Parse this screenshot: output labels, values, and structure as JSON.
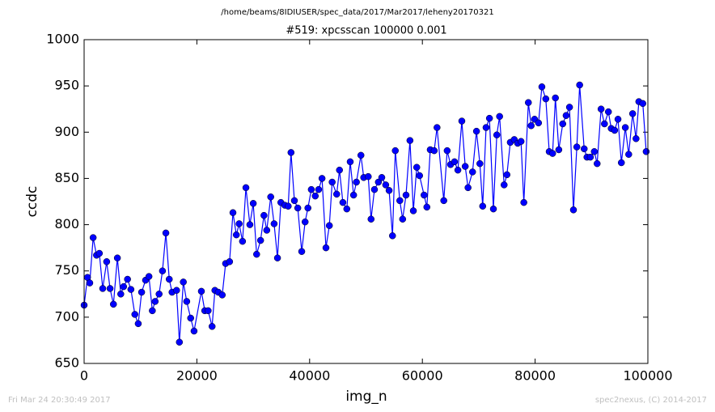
{
  "chart_data": {
    "type": "line",
    "suptitle": "/home/beams/8IDIUSER/spec_data/2017/Mar2017/leheny20170321",
    "title": "#519: xpcsscan 100000 0.001",
    "xlabel": "img_n",
    "ylabel": "ccdc",
    "footer_left": "Fri Mar 24 20:30:49 2017",
    "footer_right": "spec2nexus, (C) 2014-2017",
    "xlim": [
      0,
      100000
    ],
    "xticks": [
      0,
      20000,
      40000,
      60000,
      80000,
      100000
    ],
    "ylim": [
      650,
      1000
    ],
    "yticks": [
      650,
      700,
      750,
      800,
      850,
      900,
      950,
      1000
    ],
    "color": "#0000ff",
    "x": [
      0,
      600,
      1000,
      1600,
      2200,
      2700,
      3300,
      4000,
      4600,
      5200,
      5900,
      6500,
      7000,
      7700,
      8300,
      9000,
      9600,
      10200,
      10900,
      11500,
      12100,
      12600,
      13300,
      13900,
      14500,
      15100,
      15600,
      16400,
      16900,
      17600,
      18200,
      18900,
      19500,
      20800,
      21400,
      22000,
      22700,
      23200,
      23800,
      24500,
      25100,
      25800,
      26400,
      27000,
      27500,
      28100,
      28700,
      29400,
      30000,
      30600,
      31300,
      31900,
      32400,
      33100,
      33700,
      34300,
      34900,
      35600,
      36200,
      36700,
      37300,
      37900,
      38600,
      39200,
      39700,
      40300,
      41000,
      41600,
      42200,
      42900,
      43500,
      44000,
      44800,
      45300,
      45900,
      46600,
      47200,
      47800,
      48300,
      49100,
      49600,
      50400,
      50900,
      51500,
      52200,
      52800,
      53500,
      54100,
      54700,
      55200,
      56000,
      56500,
      57100,
      57800,
      58400,
      59000,
      59500,
      60300,
      60800,
      61400,
      62100,
      62600,
      63800,
      64400,
      65000,
      65700,
      66300,
      67000,
      67600,
      68100,
      68900,
      69600,
      70200,
      70700,
      71300,
      71900,
      72600,
      73200,
      73700,
      74500,
      75000,
      75600,
      76300,
      76900,
      77500,
      78000,
      78800,
      79300,
      79900,
      80600,
      81200,
      81900,
      82500,
      83100,
      83600,
      84200,
      84900,
      85500,
      86100,
      86800,
      87400,
      87900,
      88700,
      89200,
      89800,
      90500,
      91000,
      91700,
      92300,
      93000,
      93500,
      94100,
      94700,
      95300,
      96000,
      96600,
      97300,
      97900,
      98400,
      99100,
      99700
    ],
    "values": [
      713,
      743,
      737,
      786,
      767,
      769,
      731,
      760,
      731,
      714,
      764,
      725,
      733,
      741,
      730,
      703,
      693,
      727,
      740,
      744,
      707,
      717,
      725,
      750,
      791,
      741,
      727,
      729,
      673,
      738,
      717,
      699,
      685,
      728,
      707,
      707,
      690,
      729,
      727,
      724,
      758,
      760,
      813,
      789,
      801,
      782,
      840,
      800,
      823,
      768,
      783,
      810,
      794,
      830,
      801,
      764,
      824,
      821,
      820,
      878,
      826,
      818,
      771,
      803,
      818,
      838,
      831,
      838,
      850,
      775,
      799,
      846,
      833,
      859,
      824,
      817,
      868,
      832,
      846,
      875,
      851,
      852,
      806,
      838,
      846,
      851,
      843,
      837,
      788,
      880,
      826,
      806,
      832,
      891,
      815,
      862,
      853,
      832,
      819,
      881,
      880,
      905,
      826,
      880,
      865,
      868,
      859,
      912,
      863,
      840,
      857,
      901,
      866,
      820,
      905,
      915,
      817,
      897,
      917,
      843,
      854,
      889,
      892,
      888,
      890,
      824,
      932,
      907,
      914,
      910,
      949,
      936,
      879,
      877,
      937,
      881,
      909,
      918,
      927,
      816,
      884,
      951,
      882,
      873,
      873,
      879,
      866,
      925,
      909,
      922,
      904,
      902,
      914,
      867,
      905,
      876,
      920,
      893,
      933,
      931,
      879
    ]
  }
}
